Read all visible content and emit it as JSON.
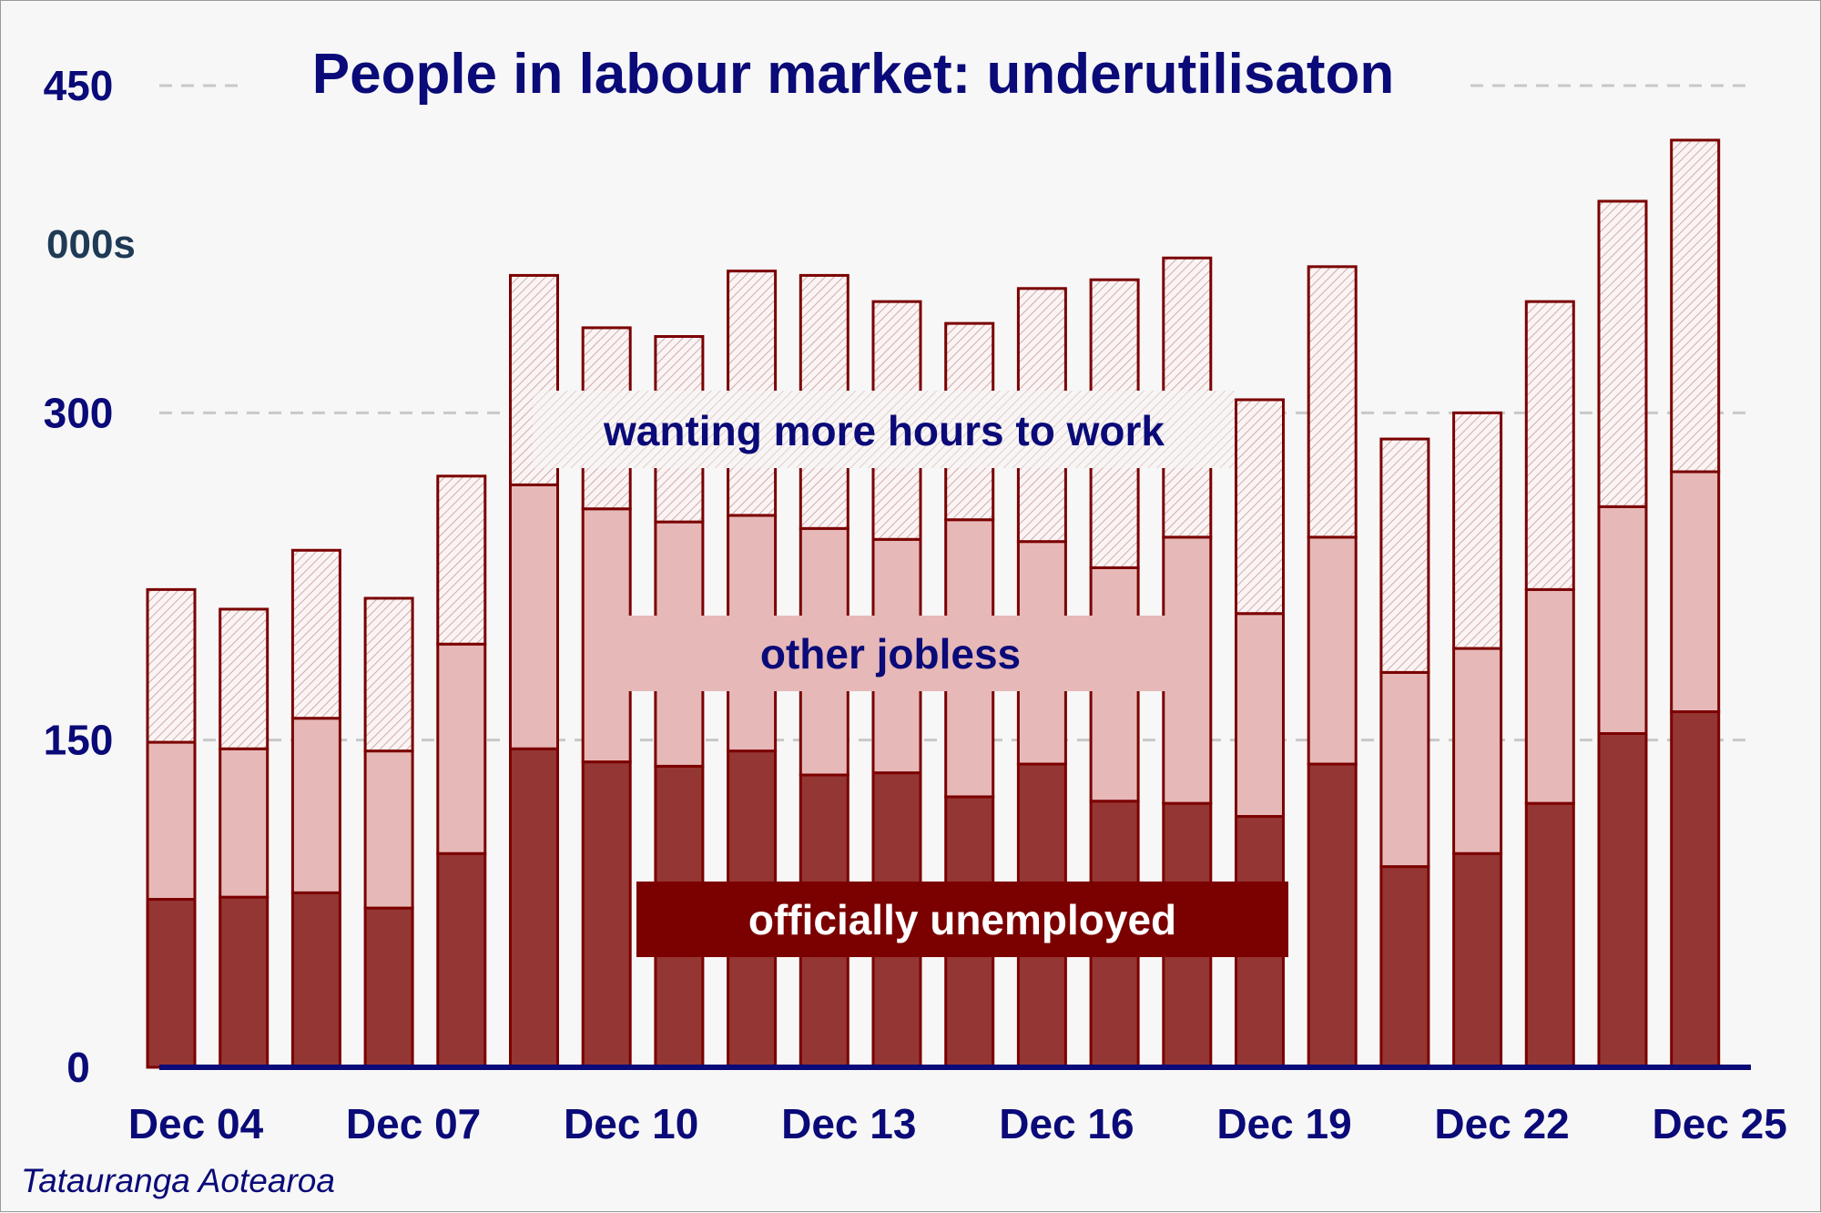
{
  "chart_data": {
    "type": "bar",
    "stacked": true,
    "title": "People in labour market: underutilisaton",
    "ylabel": "000s",
    "source": "Tatauranga Aotearoa",
    "ylim": [
      0,
      450
    ],
    "yticks": [
      0,
      150,
      300,
      450
    ],
    "grid": "horizontal dashed",
    "xtick_labels": [
      "Dec 04",
      "Dec 07",
      "Dec 10",
      "Dec 13",
      "Dec 16",
      "Dec 19",
      "Dec 22",
      "Dec 25"
    ],
    "categories": [
      "Dec 04",
      "Dec 05",
      "Dec 06",
      "Dec 07",
      "Dec 08",
      "Dec 09",
      "Dec 10",
      "Dec 11",
      "Dec 12",
      "Dec 13",
      "Dec 14",
      "Dec 15",
      "Dec 16",
      "Dec 17",
      "Dec 18",
      "Dec 19",
      "Dec 20",
      "Dec 21",
      "Dec 22",
      "Dec 23",
      "Dec 24",
      "Dec 25"
    ],
    "series": [
      {
        "name": "officially unemployed",
        "color": "#943634",
        "values": [
          77,
          78,
          80,
          73,
          98,
          146,
          140,
          138,
          145,
          134,
          135,
          124,
          139,
          122,
          121,
          115,
          139,
          92,
          98,
          121,
          153,
          163
        ]
      },
      {
        "name": "other jobless",
        "color": "#e6b9b8",
        "values": [
          72,
          68,
          80,
          72,
          96,
          121,
          116,
          112,
          108,
          113,
          107,
          127,
          102,
          107,
          122,
          93,
          104,
          89,
          94,
          98,
          104,
          110
        ]
      },
      {
        "name": "wanting more hours to work",
        "color": "#f7eeee",
        "values": [
          70,
          64,
          77,
          70,
          77,
          96,
          83,
          85,
          112,
          116,
          109,
          90,
          116,
          132,
          128,
          98,
          124,
          107,
          108,
          132,
          140,
          152
        ]
      }
    ],
    "annotations": [
      {
        "text": "wanting more hours to work",
        "color": "#0a0a78"
      },
      {
        "text": "other jobless",
        "color": "#0a0a78"
      },
      {
        "text": "officially unemployed",
        "color": "#ffffff"
      }
    ],
    "colors": {
      "axis": "#0a0a78",
      "edge": "#7b0000",
      "grid": "#c8c8c8",
      "legend_dark": "#7b0000",
      "legend_mid": "#e6b9b8"
    }
  }
}
